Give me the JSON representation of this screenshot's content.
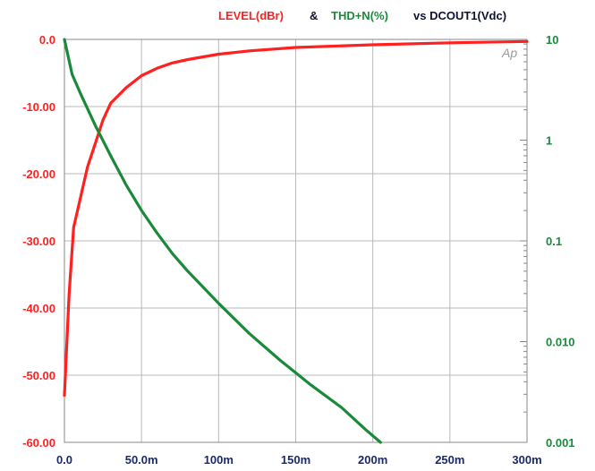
{
  "chart_data": {
    "type": "line",
    "title": {
      "part1": "LEVEL(dBr)",
      "part2": "&",
      "part3": "THD+N(%)",
      "part4": "vs DCOUT1(Vdc)"
    },
    "watermark": "Ap",
    "colors": {
      "level": "#ff2020",
      "thd": "#1a8a3a",
      "title_dark": "#111133",
      "grid": "#b8b8b8",
      "frame": "#888888"
    },
    "x_axis": {
      "range": [
        0,
        0.3
      ],
      "ticks": [
        {
          "v": 0,
          "label": "0.0"
        },
        {
          "v": 0.05,
          "label": "50.0m"
        },
        {
          "v": 0.1,
          "label": "100m"
        },
        {
          "v": 0.15,
          "label": "150m"
        },
        {
          "v": 0.2,
          "label": "200m"
        },
        {
          "v": 0.25,
          "label": "250m"
        },
        {
          "v": 0.3,
          "label": "300m"
        }
      ]
    },
    "y_left": {
      "range": [
        -60,
        0
      ],
      "ticks": [
        {
          "v": 0,
          "label": "0.0"
        },
        {
          "v": -10,
          "label": "-10.00"
        },
        {
          "v": -20,
          "label": "-20.00"
        },
        {
          "v": -30,
          "label": "-30.00"
        },
        {
          "v": -40,
          "label": "-40.00"
        },
        {
          "v": -50,
          "label": "-50.00"
        },
        {
          "v": -60,
          "label": "-60.00"
        }
      ]
    },
    "y_right": {
      "scale": "log",
      "range": [
        0.001,
        10
      ],
      "ticks": [
        {
          "v": 10,
          "label": "10"
        },
        {
          "v": 1,
          "label": "1"
        },
        {
          "v": 0.1,
          "label": "0.1"
        },
        {
          "v": 0.01,
          "label": "0.010"
        },
        {
          "v": 0.001,
          "label": "0.001"
        }
      ]
    },
    "grid": true,
    "series": [
      {
        "name": "LEVEL(dBr)",
        "axis": "left",
        "points": [
          [
            0,
            -53
          ],
          [
            0.003,
            -38
          ],
          [
            0.006,
            -28
          ],
          [
            0.01,
            -24
          ],
          [
            0.015,
            -19
          ],
          [
            0.02,
            -15.5
          ],
          [
            0.025,
            -12
          ],
          [
            0.03,
            -9.5
          ],
          [
            0.04,
            -7.2
          ],
          [
            0.05,
            -5.4
          ],
          [
            0.06,
            -4.3
          ],
          [
            0.07,
            -3.5
          ],
          [
            0.08,
            -3.0
          ],
          [
            0.1,
            -2.2
          ],
          [
            0.12,
            -1.7
          ],
          [
            0.15,
            -1.2
          ],
          [
            0.2,
            -0.8
          ],
          [
            0.25,
            -0.5
          ],
          [
            0.3,
            -0.3
          ]
        ]
      },
      {
        "name": "THD+N(%)",
        "axis": "right",
        "points": [
          [
            0,
            10
          ],
          [
            0.005,
            4.5
          ],
          [
            0.01,
            3.0
          ],
          [
            0.02,
            1.4
          ],
          [
            0.03,
            0.7
          ],
          [
            0.04,
            0.36
          ],
          [
            0.05,
            0.2
          ],
          [
            0.06,
            0.12
          ],
          [
            0.07,
            0.075
          ],
          [
            0.08,
            0.05
          ],
          [
            0.1,
            0.024
          ],
          [
            0.12,
            0.012
          ],
          [
            0.14,
            0.0065
          ],
          [
            0.16,
            0.0037
          ],
          [
            0.18,
            0.0022
          ],
          [
            0.195,
            0.00135
          ],
          [
            0.205,
            0.001
          ]
        ]
      }
    ]
  }
}
